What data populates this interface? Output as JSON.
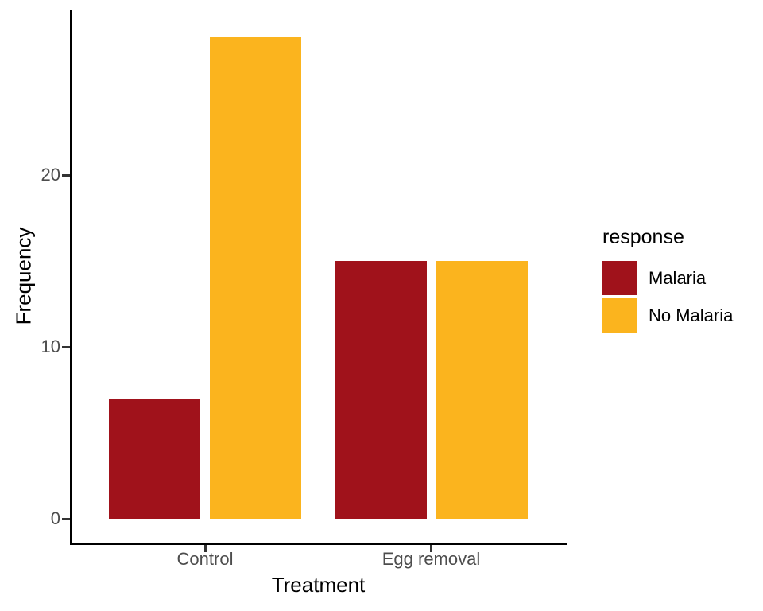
{
  "chart_data": {
    "type": "bar",
    "bar_mode": "dodge",
    "title": "",
    "xlabel": "Treatment",
    "ylabel": "Frequency",
    "categories": [
      "Control",
      "Egg removal"
    ],
    "series": [
      {
        "name": "Malaria",
        "color": "#A0121B",
        "values": [
          7,
          15
        ]
      },
      {
        "name": "No Malaria",
        "color": "#FBB41E",
        "values": [
          28,
          15
        ]
      }
    ],
    "y_ticks": [
      0,
      10,
      20
    ],
    "ylim": [
      0,
      29.6
    ],
    "grid": false,
    "legend": {
      "title": "response",
      "position": "right",
      "entries": [
        "Malaria",
        "No Malaria"
      ]
    }
  },
  "colors": {
    "axis_line": "#000000",
    "tick_mark": "#333333",
    "tick_label": "#4D4D4D",
    "axis_title": "#000000",
    "legend_text": "#000000",
    "background": "#FFFFFF"
  }
}
